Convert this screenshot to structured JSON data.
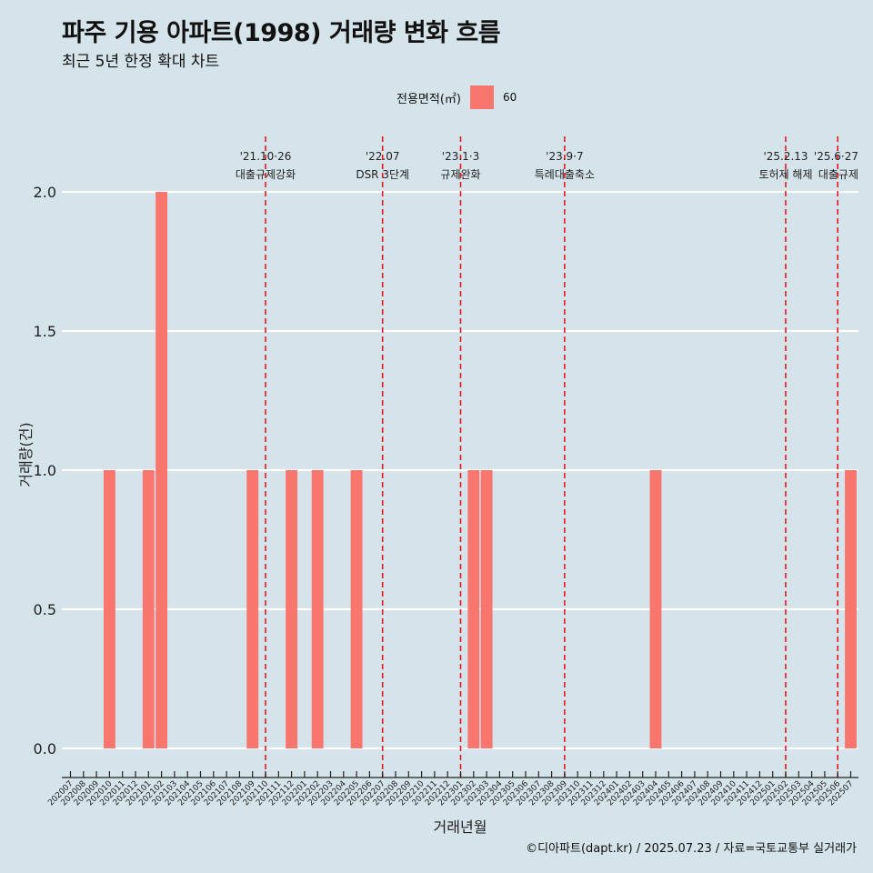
{
  "title": "파주 기용 아파트(1998) 거래량 변화 흐름",
  "subtitle": "최근 5년 한정 확대 차트",
  "legend": {
    "title": "전용면적(㎡)",
    "label": "60"
  },
  "caption": "©디아파트(dapt.kr) / 2025.07.23 / 자료=국토교통부 실거래가",
  "colors": {
    "bar": "#f8766d",
    "background": "#d5e3ea",
    "gridline": "#ffffff",
    "event_line": "#e31a1c"
  },
  "chart_data": {
    "type": "bar",
    "xlabel": "거래년월",
    "ylabel": "거래량(건)",
    "ylim": [
      0,
      2
    ],
    "yticks": [
      "0.0",
      "0.5",
      "1.0",
      "1.5",
      "2.0"
    ],
    "grid": true,
    "legend_position": "top",
    "categories": [
      "202007",
      "202008",
      "202009",
      "202010",
      "202011",
      "202012",
      "202101",
      "202102",
      "202103",
      "202104",
      "202105",
      "202106",
      "202107",
      "202108",
      "202109",
      "202110",
      "202111",
      "202112",
      "202201",
      "202202",
      "202203",
      "202204",
      "202205",
      "202206",
      "202207",
      "202208",
      "202209",
      "202210",
      "202211",
      "202212",
      "202301",
      "202302",
      "202303",
      "202304",
      "202305",
      "202306",
      "202307",
      "202308",
      "202309",
      "202310",
      "202311",
      "202312",
      "202401",
      "202402",
      "202403",
      "202404",
      "202405",
      "202406",
      "202407",
      "202408",
      "202409",
      "202410",
      "202411",
      "202412",
      "202501",
      "202502",
      "202503",
      "202504",
      "202505",
      "202506",
      "202507"
    ],
    "series": [
      {
        "name": "60",
        "values": [
          0,
          0,
          0,
          1,
          0,
          0,
          1,
          2,
          0,
          0,
          0,
          0,
          0,
          0,
          1,
          0,
          0,
          1,
          0,
          1,
          0,
          0,
          1,
          0,
          0,
          0,
          0,
          0,
          0,
          0,
          0,
          1,
          1,
          0,
          0,
          0,
          0,
          0,
          0,
          0,
          0,
          0,
          0,
          0,
          0,
          1,
          0,
          0,
          0,
          0,
          0,
          0,
          0,
          0,
          0,
          0,
          0,
          0,
          0,
          0,
          1
        ]
      }
    ],
    "events": [
      {
        "date": "'21.10·26",
        "label": "대출규제강화",
        "x": "202110"
      },
      {
        "date": "'22.07",
        "label": "DSR 3단계",
        "x": "202207"
      },
      {
        "date": "'23.1·3",
        "label": "규제완화",
        "x": "202301"
      },
      {
        "date": "'23.9·7",
        "label": "특례대출축소",
        "x": "202309"
      },
      {
        "date": "'25.2.13",
        "label": "토허제 해제",
        "x": "202502"
      },
      {
        "date": "'25.6·27",
        "label": "대출규제",
        "x": "202506"
      }
    ]
  }
}
